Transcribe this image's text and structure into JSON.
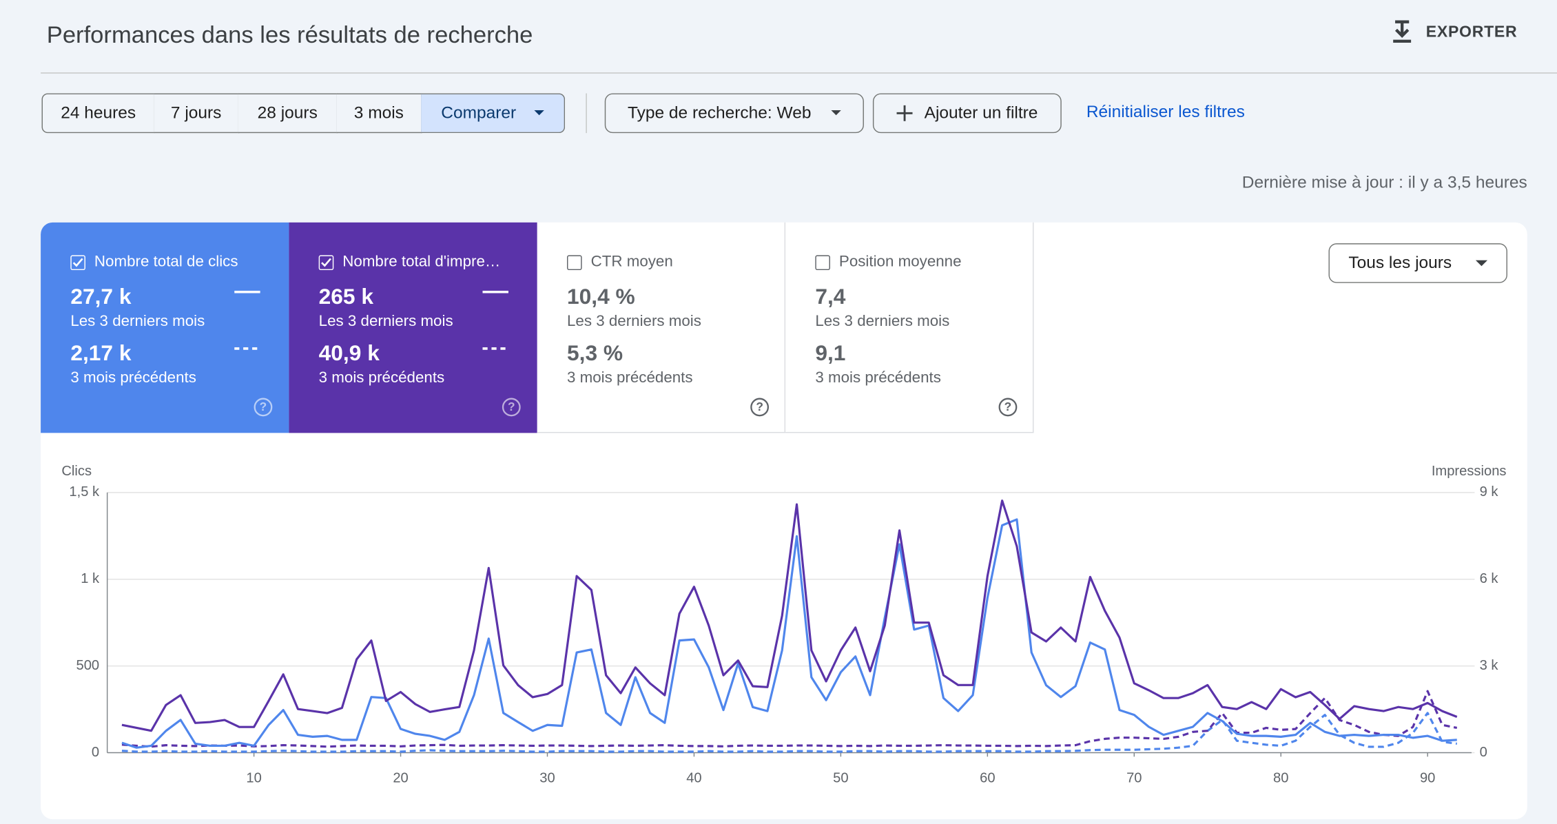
{
  "header": {
    "title": "Performances dans les résultats de recherche",
    "export": "EXPORTER"
  },
  "filters": {
    "periods": [
      "24 heures",
      "7 jours",
      "28 jours",
      "3 mois",
      "Comparer"
    ],
    "search_type": "Type de recherche: Web",
    "add_filter": "Ajouter un filtre",
    "reset": "Réinitialiser les filtres",
    "last_update": "Dernière mise à jour : il y a 3,5 heures"
  },
  "metrics": [
    {
      "label": "Nombre total de clics",
      "current": "27,7 k",
      "current_period": "Les 3 derniers mois",
      "previous": "2,17 k",
      "previous_period": "3 mois précédents",
      "checked": true,
      "color": "#4f86ec"
    },
    {
      "label": "Nombre total d'impre…",
      "current": "265 k",
      "current_period": "Les 3 derniers mois",
      "previous": "40,9 k",
      "previous_period": "3 mois précédents",
      "checked": true,
      "color": "#5a33a9"
    },
    {
      "label": "CTR moyen",
      "current": "10,4 %",
      "current_period": "Les 3 derniers mois",
      "previous": "5,3 %",
      "previous_period": "3 mois précédents",
      "checked": false
    },
    {
      "label": "Position moyenne",
      "current": "7,4",
      "current_period": "Les 3 derniers mois",
      "previous": "9,1",
      "previous_period": "3 mois précédents",
      "checked": false
    }
  ],
  "granularity": "Tous les jours",
  "chart_data": {
    "type": "line",
    "y_label": "Clics",
    "y2_label": "Impressions",
    "grid": true,
    "x": [
      1,
      2,
      3,
      4,
      5,
      6,
      7,
      8,
      9,
      10,
      11,
      12,
      13,
      14,
      15,
      16,
      17,
      18,
      19,
      20,
      21,
      22,
      23,
      24,
      25,
      26,
      27,
      28,
      29,
      30,
      31,
      32,
      33,
      34,
      35,
      36,
      37,
      38,
      39,
      40,
      41,
      42,
      43,
      44,
      45,
      46,
      47,
      48,
      49,
      50,
      51,
      52,
      53,
      54,
      55,
      56,
      57,
      58,
      59,
      60,
      61,
      62,
      63,
      64,
      65,
      66,
      67,
      68,
      69,
      70,
      71,
      72,
      73,
      74,
      75,
      76,
      77,
      78,
      79,
      80,
      81,
      82,
      83,
      84,
      85,
      86,
      87,
      88,
      89,
      90,
      91,
      92
    ],
    "xlim": [
      0,
      93
    ],
    "xticks": [
      10,
      20,
      30,
      40,
      50,
      60,
      70,
      80,
      90
    ],
    "ylim": [
      0,
      1500
    ],
    "yticks": [
      0,
      500,
      {
        "value": 1000,
        "label": "1 k"
      },
      {
        "value": 1500,
        "label": "1,5 k"
      }
    ],
    "y2lim": [
      0,
      9000
    ],
    "y2ticks": [
      0,
      {
        "value": 3000,
        "label": "3 k"
      },
      {
        "value": 6000,
        "label": "6 k"
      },
      {
        "value": 9000,
        "label": "9 k"
      }
    ],
    "series": [
      {
        "color": "#4f86ec",
        "dashed": false,
        "values": [
          57,
          29,
          40,
          126,
          189,
          52,
          40,
          40,
          57,
          40,
          160,
          246,
          103,
          92,
          97,
          74,
          74,
          321,
          315,
          137,
          109,
          97,
          74,
          120,
          332,
          658,
          229,
          177,
          126,
          160,
          155,
          578,
          595,
          229,
          160,
          435,
          229,
          172,
          647,
          653,
          492,
          246,
          515,
          263,
          240,
          590,
          1248,
          435,
          303,
          464,
          555,
          332,
          779,
          1202,
          710,
          733,
          315,
          240,
          332,
          893,
          1311,
          1345,
          578,
          389,
          321,
          384,
          635,
          595,
          246,
          218,
          149,
          103,
          126,
          149,
          229,
          183,
          109,
          97,
          97,
          92,
          103,
          172,
          120,
          97,
          103,
          97,
          103,
          103,
          86,
          97,
          69,
          74
        ]
      },
      {
        "color": "#5a33a9",
        "dashed": false,
        "axis": "y2",
        "values": [
          960,
          860,
          760,
          1650,
          1990,
          1030,
          1060,
          1130,
          890,
          890,
          1790,
          2710,
          1510,
          1440,
          1370,
          1550,
          3230,
          3880,
          1790,
          2100,
          1680,
          1410,
          1500,
          1580,
          3540,
          6390,
          3020,
          2340,
          1920,
          2030,
          2340,
          6110,
          5630,
          2680,
          2060,
          2950,
          2400,
          1990,
          4810,
          5740,
          4400,
          2680,
          3190,
          2300,
          2270,
          4740,
          8590,
          3540,
          2470,
          3540,
          4330,
          2820,
          4400,
          7690,
          4500,
          4500,
          2680,
          2340,
          2340,
          6110,
          8720,
          7140,
          4160,
          3850,
          4330,
          3850,
          6080,
          4910,
          3980,
          2400,
          2160,
          1890,
          1890,
          2060,
          2340,
          1580,
          1510,
          1750,
          1510,
          2200,
          1920,
          2100,
          1650,
          1170,
          1610,
          1510,
          1440,
          1580,
          1510,
          1720,
          1440,
          1240
        ]
      },
      {
        "color": "#4f86ec",
        "dashed": true,
        "values": [
          11,
          6,
          6,
          9,
          6,
          6,
          9,
          6,
          6,
          6,
          9,
          11,
          9,
          6,
          6,
          6,
          9,
          9,
          9,
          6,
          11,
          14,
          11,
          9,
          9,
          9,
          11,
          9,
          6,
          6,
          9,
          9,
          9,
          6,
          6,
          9,
          9,
          6,
          6,
          6,
          9,
          6,
          6,
          9,
          6,
          6,
          9,
          9,
          6,
          6,
          9,
          9,
          6,
          9,
          9,
          6,
          6,
          9,
          9,
          9,
          9,
          6,
          6,
          9,
          9,
          11,
          15,
          17,
          17,
          17,
          20,
          23,
          29,
          40,
          126,
          189,
          69,
          57,
          46,
          40,
          69,
          149,
          218,
          103,
          57,
          34,
          34,
          57,
          114,
          229,
          63,
          52
        ]
      },
      {
        "color": "#5a33a9",
        "dashed": true,
        "axis": "y2",
        "values": [
          280,
          240,
          210,
          260,
          240,
          230,
          250,
          240,
          250,
          220,
          230,
          260,
          250,
          230,
          210,
          230,
          250,
          240,
          240,
          220,
          250,
          260,
          270,
          240,
          250,
          250,
          260,
          250,
          240,
          250,
          250,
          240,
          230,
          240,
          250,
          240,
          250,
          260,
          240,
          230,
          230,
          220,
          240,
          250,
          240,
          240,
          250,
          250,
          240,
          230,
          240,
          230,
          250,
          240,
          240,
          250,
          260,
          250,
          250,
          240,
          240,
          230,
          240,
          230,
          250,
          260,
          400,
          480,
          520,
          520,
          500,
          480,
          550,
          720,
          760,
          1370,
          690,
          690,
          860,
          790,
          820,
          1370,
          1890,
          1130,
          960,
          720,
          620,
          580,
          890,
          2130,
          960,
          860
        ]
      }
    ]
  }
}
